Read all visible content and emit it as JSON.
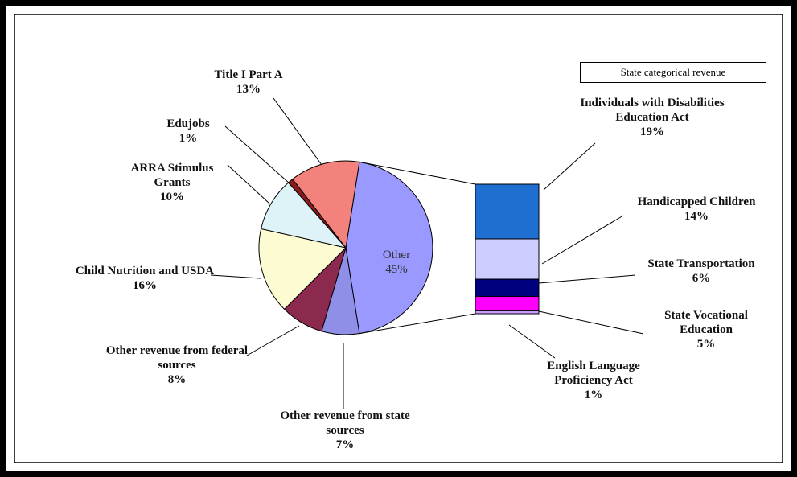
{
  "chart_data": {
    "type": "bar-of-pie",
    "categories": [
      "Other",
      "Other revenue from state sources",
      "Other revenue from federal sources",
      "Child Nutrition and USDA",
      "ARRA Stimulus Grants",
      "Edujobs",
      "Title I Part A"
    ],
    "values": [
      45,
      7,
      8,
      16,
      10,
      1,
      13
    ],
    "value_labels": [
      "45%",
      "7%",
      "8%",
      "16%",
      "10%",
      "1%",
      "13%"
    ],
    "colors": [
      "#9999ff",
      "#8f8fe8",
      "#8b2a4e",
      "#fdfbd2",
      "#def3f8",
      "#8b1a1a",
      "#f4827c"
    ],
    "bar_title": "State categorical revenue",
    "bar": {
      "categories": [
        "Individuals with Disabilities Education Act",
        "Handicapped Children",
        "State Transportation",
        "State Vocational Education",
        "English Language Proficiency Act"
      ],
      "values": [
        19,
        14,
        6,
        5,
        1
      ],
      "value_labels": [
        "19%",
        "14%",
        "6%",
        "5%",
        "1%"
      ],
      "colors": [
        "#1f6fd0",
        "#ccccff",
        "#00007f",
        "#ff00ff",
        "#cc99ff"
      ]
    }
  }
}
